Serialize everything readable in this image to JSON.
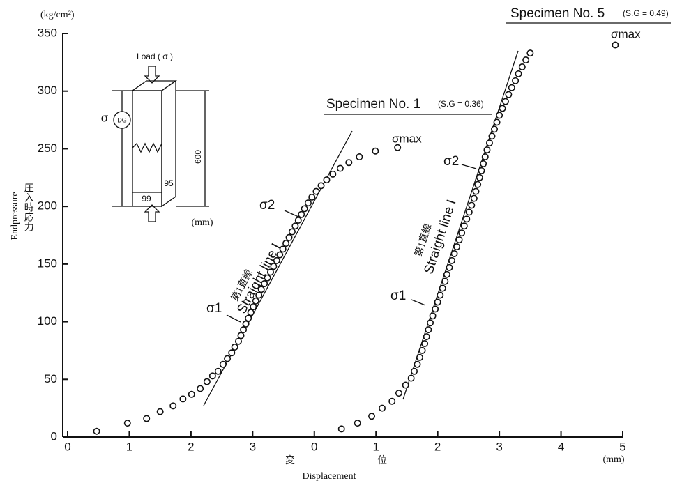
{
  "chart_data": {
    "type": "scatter",
    "xlim": [
      0,
      9
    ],
    "xticks": [
      0,
      1,
      2,
      3
    ],
    "x2lim": [
      -4,
      5
    ],
    "x2ticks": [
      0,
      1,
      2,
      3,
      4,
      5
    ],
    "ylim": [
      0,
      350
    ],
    "yticks": [
      0,
      50,
      100,
      150,
      200,
      250,
      300,
      350
    ],
    "grid": false,
    "series": [
      {
        "name": "Specimen No. 1",
        "color": "#111111",
        "x": [
          0.47,
          0.97,
          1.28,
          1.5,
          1.71,
          1.87,
          2.01,
          2.15,
          2.26,
          2.35,
          2.44,
          2.52,
          2.59,
          2.66,
          2.71,
          2.77,
          2.81,
          2.85,
          2.89,
          2.93,
          2.97,
          3.01,
          3.05,
          3.1,
          3.14,
          3.19,
          3.24,
          3.29,
          3.34,
          3.39,
          3.44,
          3.49,
          3.54,
          3.59,
          3.64,
          3.69,
          3.74,
          3.79,
          3.84,
          3.9,
          3.96,
          4.03,
          4.11,
          4.2,
          4.3,
          4.42,
          4.56,
          4.73,
          4.99,
          5.35
        ],
        "values": [
          5,
          12,
          16,
          22,
          27,
          33,
          37,
          42,
          48,
          53,
          57,
          63,
          68,
          73,
          78,
          83,
          88,
          93,
          98,
          103,
          108,
          113,
          118,
          123,
          128,
          133,
          138,
          143,
          148,
          153,
          158,
          163,
          168,
          173,
          178,
          183,
          188,
          193,
          198,
          203,
          208,
          213,
          218,
          223,
          228,
          233,
          238,
          243,
          248,
          251
        ]
      },
      {
        "name": "Specimen No. 5",
        "color": "#111111",
        "axis": "x2",
        "x": [
          0.44,
          0.7,
          0.93,
          1.1,
          1.26,
          1.37,
          1.48,
          1.57,
          1.62,
          1.67,
          1.71,
          1.75,
          1.79,
          1.82,
          1.85,
          1.88,
          1.92,
          1.96,
          2.0,
          2.04,
          2.08,
          2.12,
          2.15,
          2.19,
          2.23,
          2.27,
          2.31,
          2.35,
          2.39,
          2.43,
          2.47,
          2.51,
          2.55,
          2.59,
          2.62,
          2.65,
          2.68,
          2.71,
          2.74,
          2.77,
          2.8,
          2.84,
          2.88,
          2.92,
          2.96,
          3.0,
          3.05,
          3.1,
          3.15,
          3.2,
          3.26,
          3.31,
          3.37,
          3.43,
          3.5,
          4.88
        ],
        "values": [
          7,
          12,
          18,
          25,
          31,
          38,
          45,
          51,
          57,
          63,
          69,
          75,
          81,
          87,
          93,
          99,
          105,
          111,
          117,
          123,
          129,
          135,
          141,
          147,
          153,
          159,
          165,
          171,
          177,
          183,
          189,
          195,
          201,
          207,
          213,
          219,
          225,
          231,
          237,
          243,
          249,
          255,
          261,
          267,
          273,
          279,
          285,
          291,
          297,
          303,
          309,
          315,
          321,
          327,
          333,
          340
        ]
      }
    ],
    "annotations": [
      "(kg/cm²)",
      "Endpressure",
      "圧入時応力",
      "変",
      "位",
      "Displacement",
      "(mm)",
      "Specimen No. 1",
      "(S.G = 0.36)",
      "Specimen No. 5",
      "(S.G = 0.49)",
      "σmax",
      "σmax",
      "σ2",
      "σ2",
      "σ1",
      "σ1",
      "第1直線",
      "Straight line I",
      "第1直線",
      "Straight line I",
      "Load ( σ )",
      "σ",
      "DG",
      "600",
      "99",
      "95",
      "(mm)"
    ]
  }
}
